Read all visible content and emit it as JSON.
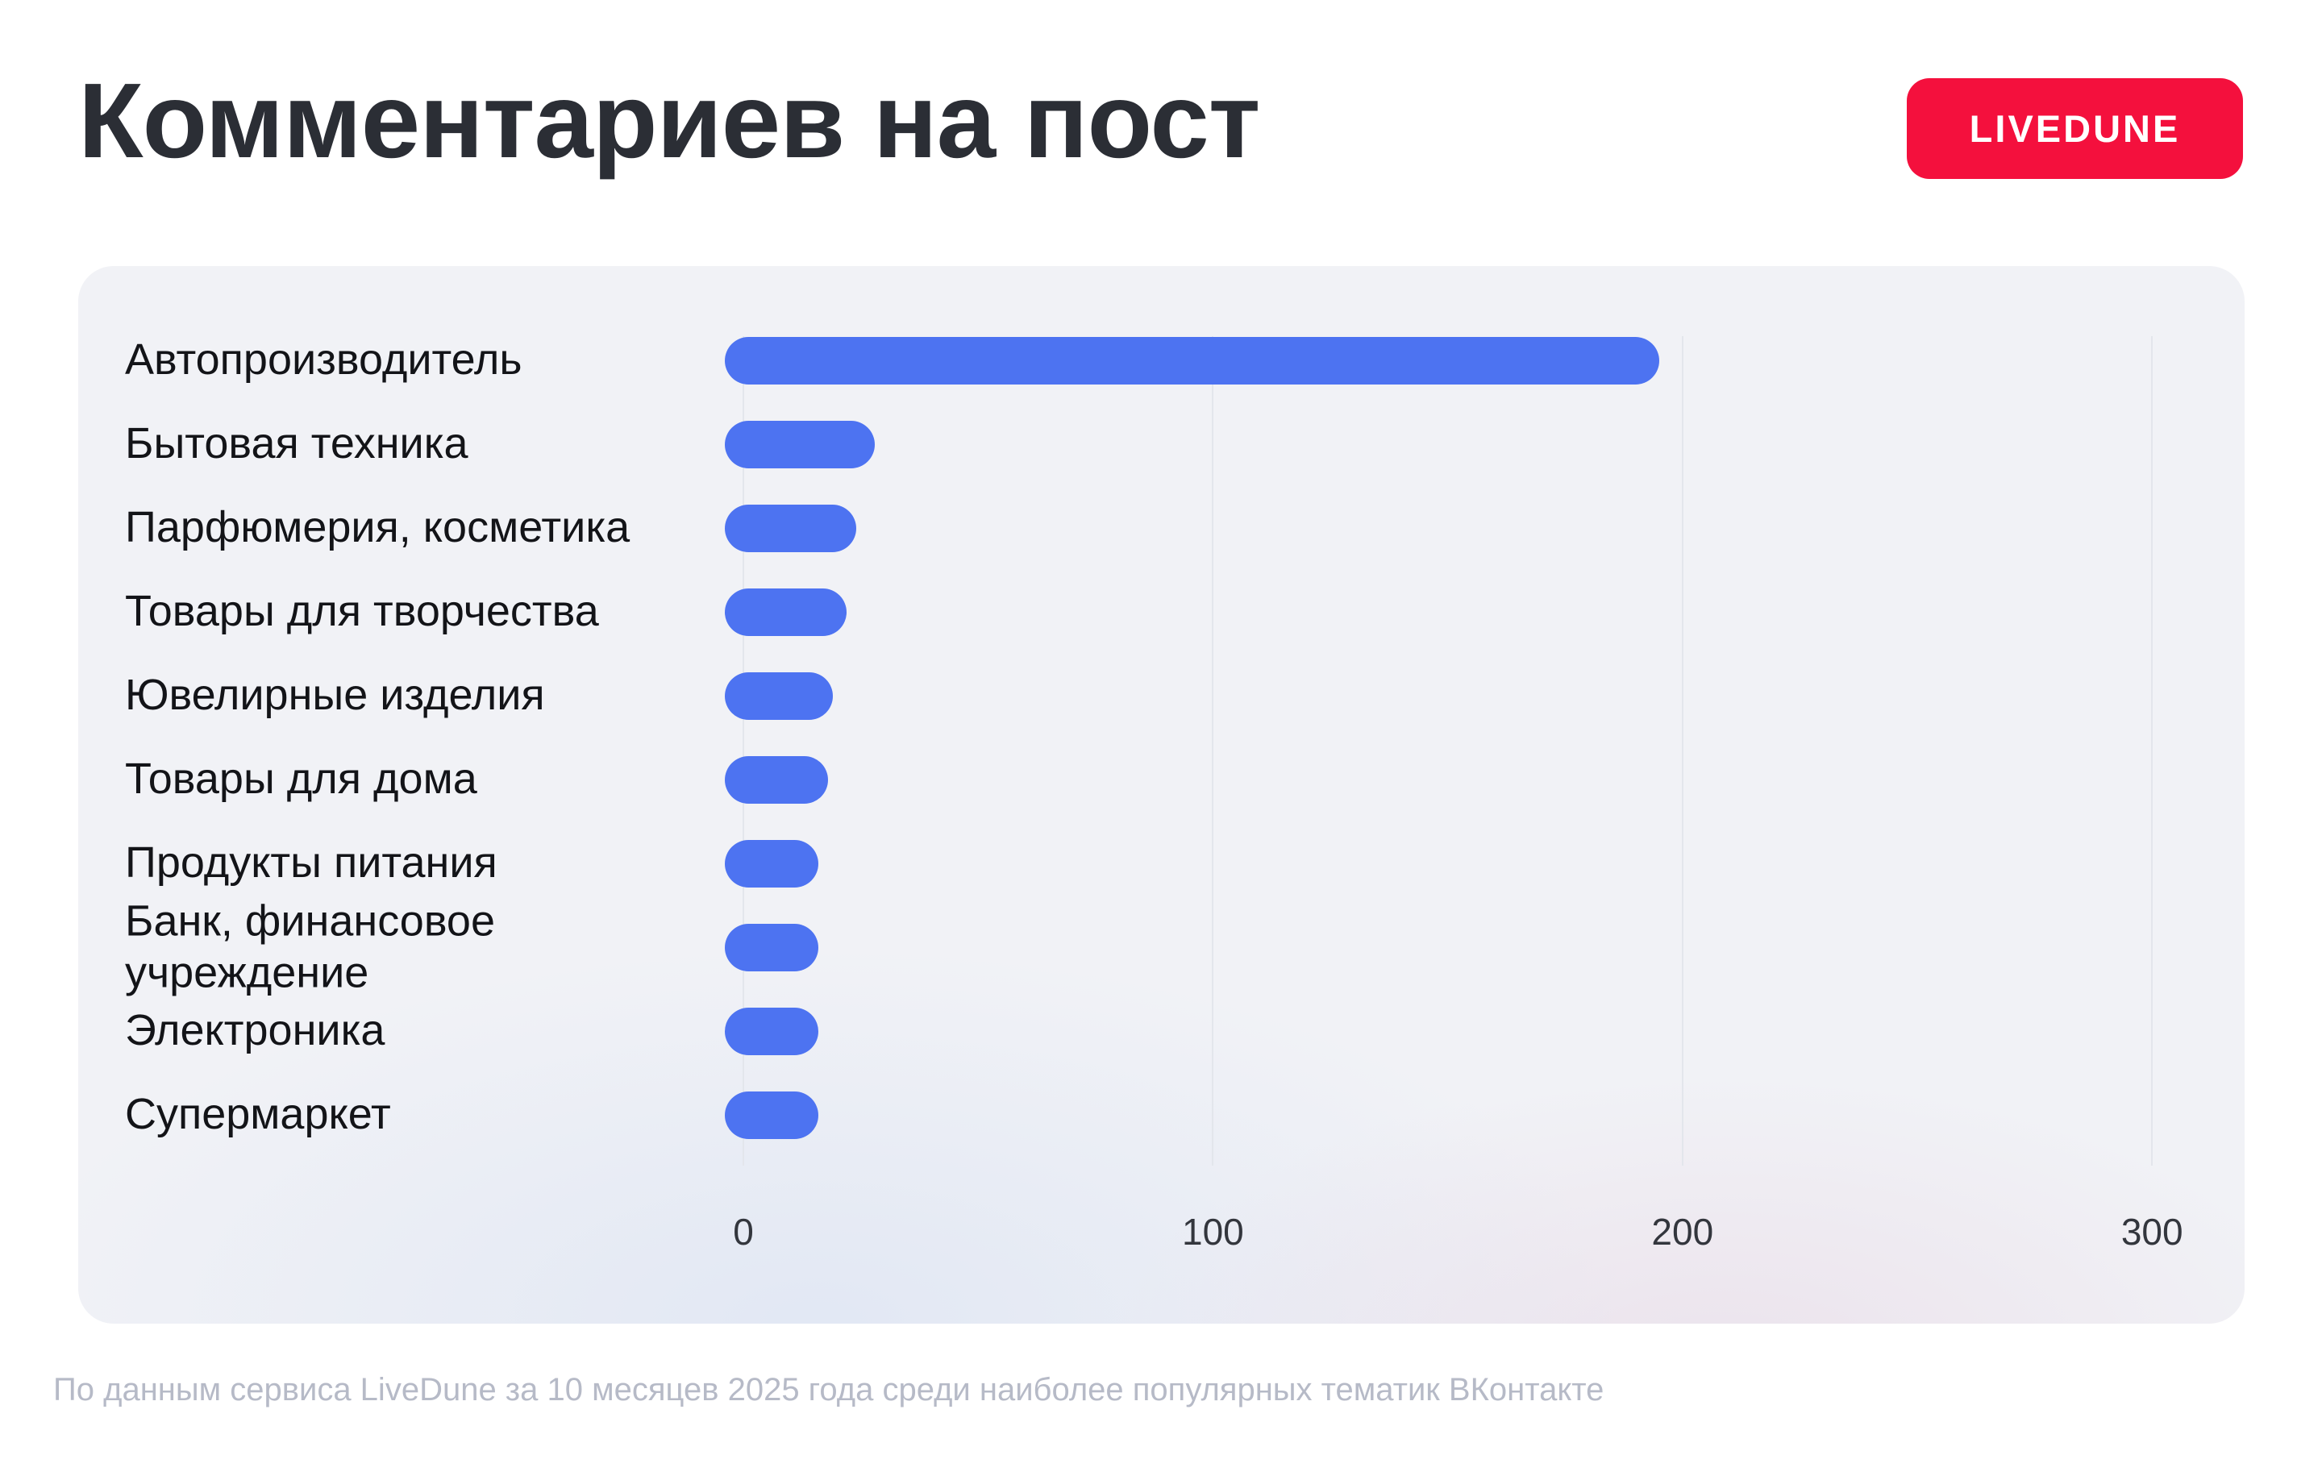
{
  "header": {
    "title": "Комментариев на пост",
    "badge_label": "LIVEDUNE"
  },
  "footer": {
    "note": "По данным сервиса LiveDune за 10 месяцев 2025 года среди наиболее популярных тематик ВКонтакте"
  },
  "colors": {
    "bar": "#4d73f1",
    "brand_red": "#f4103d",
    "panel_bg": "#f1f2f6",
    "gridline": "#e3e6ec",
    "title_text": "#2b2e35",
    "footer_text": "#b6bac7"
  },
  "chart_data": {
    "type": "bar",
    "orientation": "horizontal",
    "title": "Комментариев на пост",
    "categories": [
      "Автопроизводитель",
      "Бытовая техника",
      "Парфюмерия, косметика",
      "Товары для творчества",
      "Ювелирные изделия",
      "Товары для дома",
      "Продукты питания",
      "Банк, финансовое\nучреждение",
      "Электроника",
      "Супермаркет"
    ],
    "values": [
      195,
      28,
      24,
      22,
      19,
      18,
      16,
      16,
      16,
      16
    ],
    "xlabel": "",
    "ylabel": "",
    "xlim": [
      0,
      300
    ],
    "x_ticks": [
      0,
      100,
      200,
      300
    ],
    "grid": "vertical-gridlines",
    "legend": "none"
  }
}
